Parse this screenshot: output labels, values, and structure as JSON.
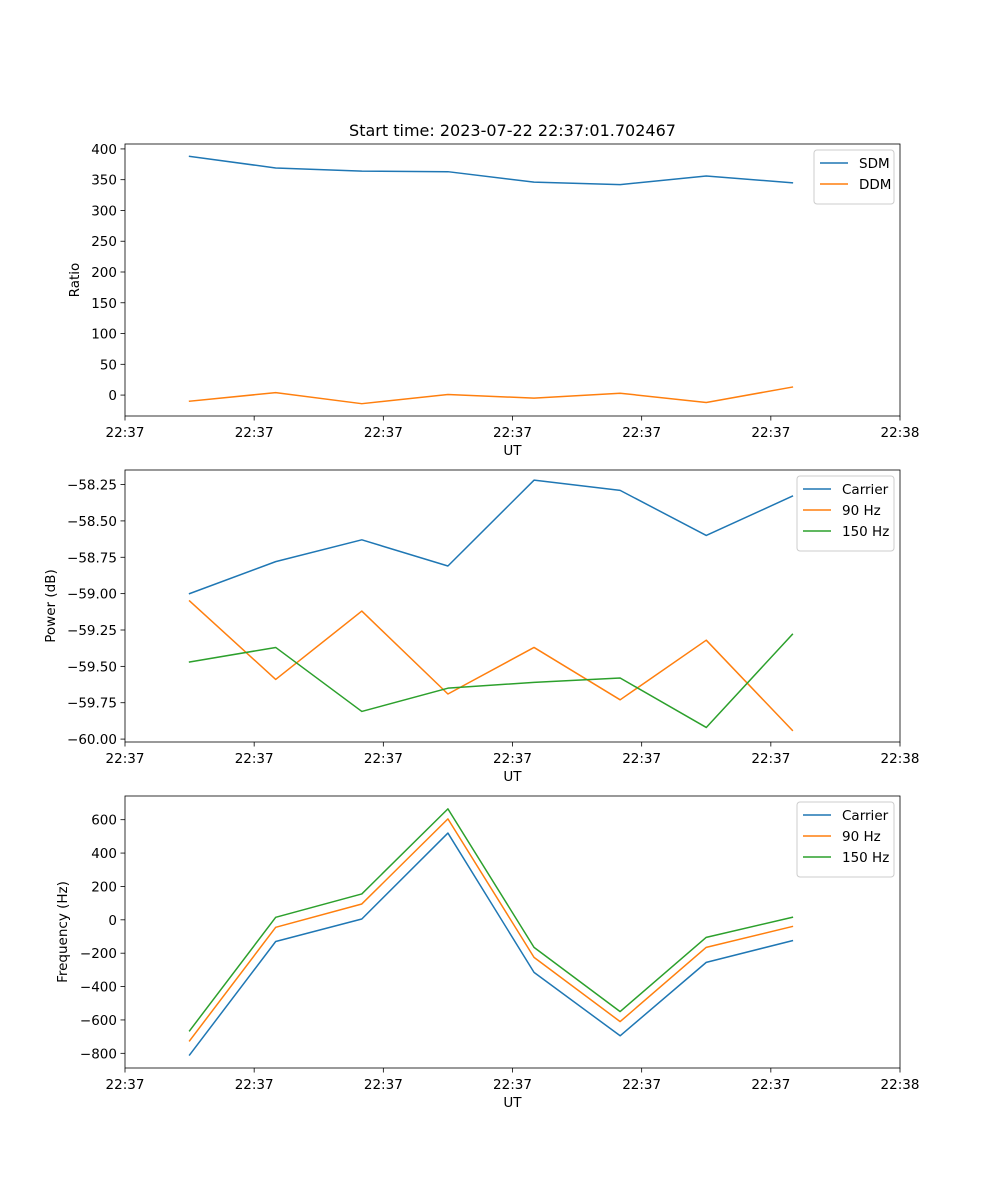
{
  "figure_title": "Start time: 2023-07-22 22:37:01.702467",
  "chart_data": [
    {
      "type": "line",
      "title": "Start time: 2023-07-22 22:37:01.702467",
      "xlabel": "UT",
      "ylabel": "Ratio",
      "x": [
        1,
        2,
        3,
        4,
        5,
        6,
        7,
        8
      ],
      "xlim": [
        0.25,
        9.25
      ],
      "xticks": [
        0.25,
        1.75,
        3.25,
        4.75,
        6.25,
        7.75,
        9.25
      ],
      "xtick_labels": [
        "22:37",
        "22:37",
        "22:37",
        "22:37",
        "22:37",
        "22:37",
        "22:38"
      ],
      "ylim": [
        -34,
        408
      ],
      "yticks": [
        0,
        50,
        100,
        150,
        200,
        250,
        300,
        350,
        400
      ],
      "ytick_labels": [
        "0",
        "50",
        "100",
        "150",
        "200",
        "250",
        "300",
        "350",
        "400"
      ],
      "legend_position": "top-right",
      "series": [
        {
          "name": "SDM",
          "color": "#1f77b4",
          "values": [
            388,
            369,
            364,
            363,
            346,
            342,
            356,
            345
          ]
        },
        {
          "name": "DDM",
          "color": "#ff7f0e",
          "values": [
            -10,
            4,
            -14,
            1,
            -5,
            3,
            -12,
            13
          ]
        }
      ]
    },
    {
      "type": "line",
      "title": "",
      "xlabel": "UT",
      "ylabel": "Power (dB)",
      "x": [
        1,
        2,
        3,
        4,
        5,
        6,
        7,
        8
      ],
      "xlim": [
        0.25,
        9.25
      ],
      "xticks": [
        0.25,
        1.75,
        3.25,
        4.75,
        6.25,
        7.75,
        9.25
      ],
      "xtick_labels": [
        "22:37",
        "22:37",
        "22:37",
        "22:37",
        "22:37",
        "22:37",
        "22:38"
      ],
      "ylim": [
        -60.02,
        -58.15
      ],
      "yticks": [
        -60.0,
        -59.75,
        -59.5,
        -59.25,
        -59.0,
        -58.75,
        -58.5,
        -58.25
      ],
      "ytick_labels": [
        "−60.00",
        "−59.75",
        "−59.50",
        "−59.25",
        "−59.00",
        "−58.75",
        "−58.50",
        "−58.25"
      ],
      "legend_position": "top-right",
      "series": [
        {
          "name": "Carrier",
          "color": "#1f77b4",
          "values": [
            -59.0,
            -58.78,
            -58.63,
            -58.81,
            -58.22,
            -58.29,
            -58.6,
            -58.33
          ]
        },
        {
          "name": "90 Hz",
          "color": "#ff7f0e",
          "values": [
            -59.05,
            -59.59,
            -59.12,
            -59.69,
            -59.37,
            -59.73,
            -59.32,
            -59.94
          ]
        },
        {
          "name": "150 Hz",
          "color": "#2ca02c",
          "values": [
            -59.47,
            -59.37,
            -59.81,
            -59.65,
            -59.61,
            -59.58,
            -59.92,
            -59.28
          ]
        }
      ]
    },
    {
      "type": "line",
      "title": "",
      "xlabel": "UT",
      "ylabel": "Frequency (Hz)",
      "x": [
        1,
        2,
        3,
        4,
        5,
        6,
        7,
        8
      ],
      "xlim": [
        0.25,
        9.25
      ],
      "xticks": [
        0.25,
        1.75,
        3.25,
        4.75,
        6.25,
        7.75,
        9.25
      ],
      "xtick_labels": [
        "22:37",
        "22:37",
        "22:37",
        "22:37",
        "22:37",
        "22:37",
        "22:38"
      ],
      "ylim": [
        -888,
        742
      ],
      "yticks": [
        -800,
        -600,
        -400,
        -200,
        0,
        200,
        400,
        600
      ],
      "ytick_labels": [
        "−800",
        "−600",
        "−400",
        "−200",
        "0",
        "200",
        "400",
        "600"
      ],
      "legend_position": "top-right",
      "series": [
        {
          "name": "Carrier",
          "color": "#1f77b4",
          "values": [
            -810,
            -130,
            5,
            520,
            -315,
            -695,
            -255,
            -125
          ]
        },
        {
          "name": "90 Hz",
          "color": "#ff7f0e",
          "values": [
            -725,
            -45,
            95,
            605,
            -225,
            -610,
            -165,
            -40
          ]
        },
        {
          "name": "150 Hz",
          "color": "#2ca02c",
          "values": [
            -665,
            15,
            155,
            665,
            -165,
            -550,
            -105,
            15
          ]
        }
      ]
    }
  ]
}
